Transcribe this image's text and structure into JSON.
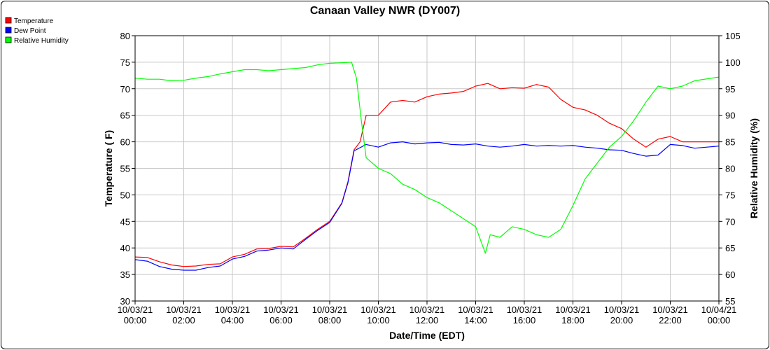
{
  "chart_data": {
    "type": "line",
    "title": "Canaan Valley NWR (DY007)",
    "xlabel": "Date/Time (EDT)",
    "ylabel": "Temperature ( F)",
    "y2label": "Relative Humidity (%)",
    "ylim": [
      30,
      80
    ],
    "y2lim": [
      55,
      105
    ],
    "xlim": [
      0,
      24
    ],
    "grid": true,
    "legend_position": "top-left",
    "x_ticks": [
      {
        "x": 0,
        "date": "10/03/21",
        "time": "00:00"
      },
      {
        "x": 2,
        "date": "10/03/21",
        "time": "02:00"
      },
      {
        "x": 4,
        "date": "10/03/21",
        "time": "04:00"
      },
      {
        "x": 6,
        "date": "10/03/21",
        "time": "06:00"
      },
      {
        "x": 8,
        "date": "10/03/21",
        "time": "08:00"
      },
      {
        "x": 10,
        "date": "10/03/21",
        "time": "10:00"
      },
      {
        "x": 12,
        "date": "10/03/21",
        "time": "12:00"
      },
      {
        "x": 14,
        "date": "10/03/21",
        "time": "14:00"
      },
      {
        "x": 16,
        "date": "10/03/21",
        "time": "16:00"
      },
      {
        "x": 18,
        "date": "10/03/21",
        "time": "18:00"
      },
      {
        "x": 20,
        "date": "10/03/21",
        "time": "20:00"
      },
      {
        "x": 22,
        "date": "10/03/21",
        "time": "22:00"
      },
      {
        "x": 24,
        "date": "10/04/21",
        "time": "00:00"
      }
    ],
    "y_ticks": [
      "30",
      "35",
      "40",
      "45",
      "50",
      "55",
      "60",
      "65",
      "70",
      "75",
      "80"
    ],
    "y2_ticks": [
      "55",
      "60",
      "65",
      "70",
      "75",
      "80",
      "85",
      "90",
      "95",
      "100",
      "105"
    ],
    "series": [
      {
        "name": "Temperature",
        "color": "#ff0000",
        "axis": "left",
        "points": [
          [
            0,
            38.3
          ],
          [
            0.5,
            38.2
          ],
          [
            1,
            37.4
          ],
          [
            1.5,
            36.8
          ],
          [
            2,
            36.5
          ],
          [
            2.5,
            36.6
          ],
          [
            3,
            36.9
          ],
          [
            3.5,
            37.0
          ],
          [
            4,
            38.3
          ],
          [
            4.5,
            38.8
          ],
          [
            5,
            39.8
          ],
          [
            5.5,
            39.9
          ],
          [
            6,
            40.3
          ],
          [
            6.5,
            40.2
          ],
          [
            7,
            41.8
          ],
          [
            7.5,
            43.5
          ],
          [
            8,
            45.0
          ],
          [
            8.5,
            48.5
          ],
          [
            8.75,
            52.5
          ],
          [
            9,
            58.5
          ],
          [
            9.25,
            60.0
          ],
          [
            9.5,
            65.0
          ],
          [
            10,
            65.0
          ],
          [
            10.5,
            67.5
          ],
          [
            11,
            67.8
          ],
          [
            11.5,
            67.5
          ],
          [
            12,
            68.5
          ],
          [
            12.5,
            69.0
          ],
          [
            13,
            69.2
          ],
          [
            13.5,
            69.5
          ],
          [
            14,
            70.5
          ],
          [
            14.5,
            71.0
          ],
          [
            15,
            70.0
          ],
          [
            15.5,
            70.2
          ],
          [
            16,
            70.1
          ],
          [
            16.5,
            70.8
          ],
          [
            17,
            70.3
          ],
          [
            17.5,
            68.0
          ],
          [
            18,
            66.5
          ],
          [
            18.5,
            66.0
          ],
          [
            19,
            65.0
          ],
          [
            19.5,
            63.5
          ],
          [
            20,
            62.5
          ],
          [
            20.5,
            60.5
          ],
          [
            21,
            59.0
          ],
          [
            21.5,
            60.5
          ],
          [
            22,
            61.0
          ],
          [
            22.5,
            60.0
          ],
          [
            23,
            60.0
          ],
          [
            24,
            60.0
          ]
        ]
      },
      {
        "name": "Dew Point",
        "color": "#0000ff",
        "axis": "left",
        "points": [
          [
            0,
            37.8
          ],
          [
            0.5,
            37.5
          ],
          [
            1,
            36.5
          ],
          [
            1.5,
            36.0
          ],
          [
            2,
            35.8
          ],
          [
            2.5,
            35.8
          ],
          [
            3,
            36.3
          ],
          [
            3.5,
            36.6
          ],
          [
            4,
            37.9
          ],
          [
            4.5,
            38.4
          ],
          [
            5,
            39.4
          ],
          [
            5.5,
            39.6
          ],
          [
            6,
            40.0
          ],
          [
            6.5,
            39.8
          ],
          [
            7,
            41.6
          ],
          [
            7.5,
            43.3
          ],
          [
            8,
            44.8
          ],
          [
            8.5,
            48.4
          ],
          [
            8.75,
            52.3
          ],
          [
            9,
            58.3
          ],
          [
            9.5,
            59.5
          ],
          [
            10,
            59.0
          ],
          [
            10.5,
            59.8
          ],
          [
            11,
            60.0
          ],
          [
            11.5,
            59.6
          ],
          [
            12,
            59.8
          ],
          [
            12.5,
            59.9
          ],
          [
            13,
            59.5
          ],
          [
            13.5,
            59.4
          ],
          [
            14,
            59.6
          ],
          [
            14.5,
            59.2
          ],
          [
            15,
            59.0
          ],
          [
            15.5,
            59.2
          ],
          [
            16,
            59.5
          ],
          [
            16.5,
            59.2
          ],
          [
            17,
            59.3
          ],
          [
            17.5,
            59.2
          ],
          [
            18,
            59.3
          ],
          [
            18.5,
            59.0
          ],
          [
            19,
            58.8
          ],
          [
            19.5,
            58.5
          ],
          [
            20,
            58.4
          ],
          [
            20.5,
            57.8
          ],
          [
            21,
            57.3
          ],
          [
            21.5,
            57.5
          ],
          [
            22,
            59.5
          ],
          [
            22.5,
            59.3
          ],
          [
            23,
            58.8
          ],
          [
            24,
            59.2
          ]
        ]
      },
      {
        "name": "Relative Humidity",
        "color": "#00ff00",
        "axis": "right",
        "points": [
          [
            0,
            97.0
          ],
          [
            0.5,
            96.8
          ],
          [
            1,
            96.8
          ],
          [
            1.5,
            96.5
          ],
          [
            2,
            96.6
          ],
          [
            2.5,
            97.0
          ],
          [
            3,
            97.3
          ],
          [
            3.5,
            97.8
          ],
          [
            4,
            98.2
          ],
          [
            4.5,
            98.6
          ],
          [
            5,
            98.6
          ],
          [
            5.5,
            98.4
          ],
          [
            6,
            98.6
          ],
          [
            6.5,
            98.8
          ],
          [
            7,
            99.0
          ],
          [
            7.5,
            99.5
          ],
          [
            8,
            99.8
          ],
          [
            8.5,
            99.9
          ],
          [
            8.9,
            100.0
          ],
          [
            9.1,
            97.0
          ],
          [
            9.3,
            89.0
          ],
          [
            9.5,
            82.0
          ],
          [
            10,
            80.0
          ],
          [
            10.5,
            79.0
          ],
          [
            11,
            77.0
          ],
          [
            11.5,
            76.0
          ],
          [
            12,
            74.5
          ],
          [
            12.5,
            73.5
          ],
          [
            13,
            72.0
          ],
          [
            13.5,
            70.5
          ],
          [
            14,
            69.0
          ],
          [
            14.4,
            64.0
          ],
          [
            14.6,
            67.5
          ],
          [
            15,
            67.0
          ],
          [
            15.5,
            69.0
          ],
          [
            16,
            68.5
          ],
          [
            16.5,
            67.5
          ],
          [
            17,
            67.0
          ],
          [
            17.5,
            68.5
          ],
          [
            18,
            73.0
          ],
          [
            18.5,
            78.0
          ],
          [
            19,
            81.0
          ],
          [
            19.5,
            84.0
          ],
          [
            20,
            86.0
          ],
          [
            20.5,
            89.0
          ],
          [
            21,
            92.5
          ],
          [
            21.5,
            95.5
          ],
          [
            22,
            95.0
          ],
          [
            22.5,
            95.5
          ],
          [
            23,
            96.5
          ],
          [
            24,
            97.2
          ]
        ]
      }
    ]
  }
}
